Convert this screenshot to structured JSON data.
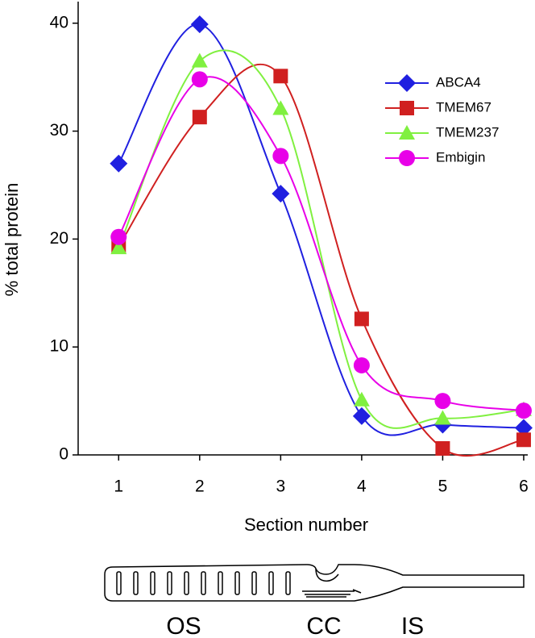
{
  "chart_data": {
    "type": "line",
    "x": [
      1,
      2,
      3,
      4,
      5,
      6
    ],
    "xlim": [
      0.5,
      6.05
    ],
    "xticks": [
      1,
      2,
      3,
      4,
      5,
      6
    ],
    "ylim": [
      0,
      42
    ],
    "yticks": [
      0,
      10,
      20,
      30,
      40
    ],
    "x_label": "Section number",
    "y_label": "% total protein",
    "legend": "upper right",
    "series": [
      {
        "name": "ABCA4",
        "color": "#2020e0",
        "marker": "diamond",
        "values": [
          27.0,
          39.9,
          24.2,
          3.6,
          2.8,
          2.5
        ]
      },
      {
        "name": "TMEM67",
        "color": "#d02020",
        "marker": "square",
        "values": [
          19.3,
          31.3,
          35.1,
          12.6,
          0.6,
          1.4
        ]
      },
      {
        "name": "TMEM237",
        "color": "#80f040",
        "marker": "triangle",
        "values": [
          19.2,
          36.5,
          32.1,
          5.1,
          3.4,
          4.2
        ]
      },
      {
        "name": "Embigin",
        "color": "#e800e8",
        "marker": "circle",
        "values": [
          20.2,
          34.8,
          27.7,
          8.3,
          5.0,
          4.1
        ]
      }
    ]
  },
  "diagram": {
    "labels": [
      "OS",
      "CC",
      "IS"
    ]
  }
}
